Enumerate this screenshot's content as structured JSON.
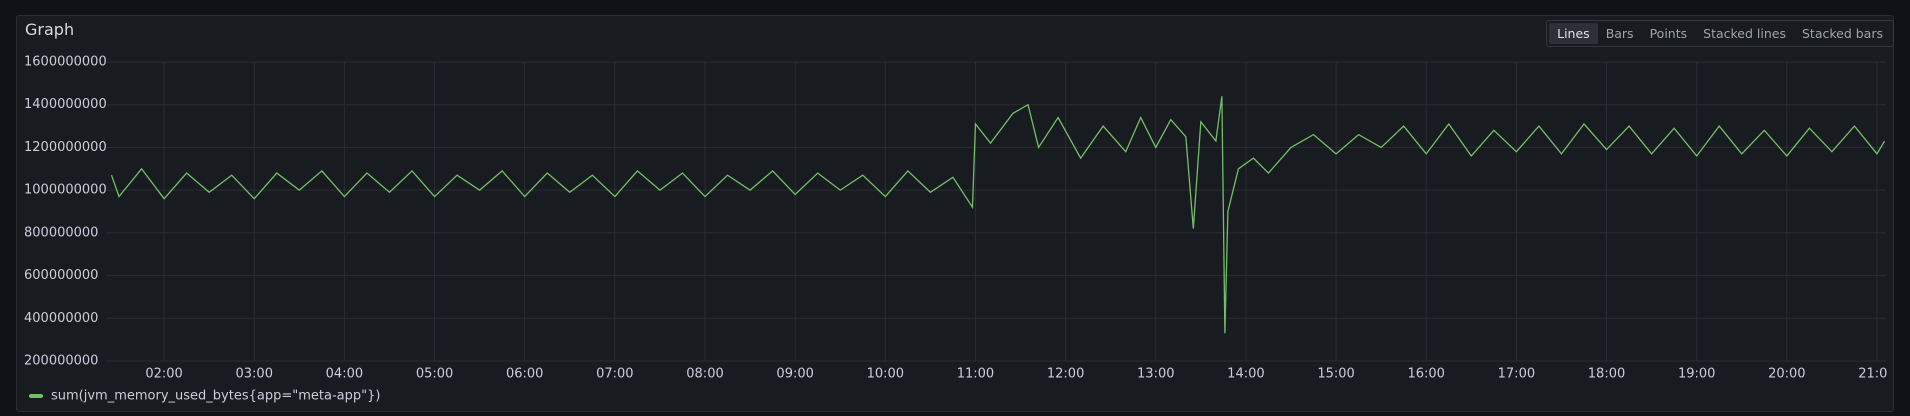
{
  "panel_title": "Graph",
  "display_modes": [
    "Lines",
    "Bars",
    "Points",
    "Stacked lines",
    "Stacked bars"
  ],
  "chart_data": {
    "type": "line",
    "x": [
      "01:25",
      "01:30",
      "01:45",
      "02:00",
      "02:15",
      "02:30",
      "02:45",
      "03:00",
      "03:15",
      "03:30",
      "03:45",
      "04:00",
      "04:15",
      "04:30",
      "04:45",
      "05:00",
      "05:15",
      "05:30",
      "05:45",
      "06:00",
      "06:15",
      "06:30",
      "06:45",
      "07:00",
      "07:15",
      "07:30",
      "07:45",
      "08:00",
      "08:15",
      "08:30",
      "08:45",
      "09:00",
      "09:15",
      "09:30",
      "09:45",
      "10:00",
      "10:15",
      "10:30",
      "10:45",
      "10:58",
      "11:00",
      "11:10",
      "11:25",
      "11:35",
      "11:42",
      "11:55",
      "12:10",
      "12:25",
      "12:40",
      "12:50",
      "13:00",
      "13:10",
      "13:20",
      "13:25",
      "13:30",
      "13:40",
      "13:44",
      "13:46",
      "13:48",
      "13:55",
      "14:05",
      "14:15",
      "14:30",
      "14:45",
      "15:00",
      "15:15",
      "15:30",
      "15:45",
      "16:00",
      "16:15",
      "16:30",
      "16:45",
      "17:00",
      "17:15",
      "17:30",
      "17:45",
      "18:00",
      "18:15",
      "18:30",
      "18:45",
      "19:00",
      "19:15",
      "19:30",
      "19:45",
      "20:00",
      "20:15",
      "20:30",
      "20:45",
      "21:00",
      "21:05"
    ],
    "series": [
      {
        "name": "sum(jvm_memory_used_bytes{app=\"meta-app\"})",
        "color": "#73bf69",
        "values": [
          1070000000,
          970000000,
          1100000000,
          960000000,
          1080000000,
          990000000,
          1070000000,
          960000000,
          1080000000,
          1000000000,
          1090000000,
          970000000,
          1080000000,
          990000000,
          1090000000,
          970000000,
          1070000000,
          1000000000,
          1090000000,
          970000000,
          1080000000,
          990000000,
          1070000000,
          970000000,
          1090000000,
          1000000000,
          1080000000,
          970000000,
          1070000000,
          1000000000,
          1090000000,
          980000000,
          1080000000,
          1000000000,
          1070000000,
          970000000,
          1090000000,
          990000000,
          1060000000,
          920000000,
          1310000000,
          1220000000,
          1360000000,
          1400000000,
          1200000000,
          1340000000,
          1150000000,
          1300000000,
          1180000000,
          1340000000,
          1200000000,
          1330000000,
          1250000000,
          820000000,
          1320000000,
          1230000000,
          1440000000,
          330000000,
          900000000,
          1100000000,
          1150000000,
          1080000000,
          1200000000,
          1260000000,
          1170000000,
          1260000000,
          1200000000,
          1300000000,
          1170000000,
          1310000000,
          1160000000,
          1280000000,
          1180000000,
          1300000000,
          1170000000,
          1310000000,
          1190000000,
          1300000000,
          1170000000,
          1290000000,
          1160000000,
          1300000000,
          1170000000,
          1280000000,
          1160000000,
          1290000000,
          1180000000,
          1300000000,
          1170000000,
          1230000000
        ]
      }
    ],
    "xlim": [
      "01:22",
      "21:06"
    ],
    "xticks": [
      "02:00",
      "03:00",
      "04:00",
      "05:00",
      "06:00",
      "07:00",
      "08:00",
      "09:00",
      "10:00",
      "11:00",
      "12:00",
      "13:00",
      "14:00",
      "15:00",
      "16:00",
      "17:00",
      "18:00",
      "19:00",
      "20:00",
      "21:00"
    ],
    "ylim": [
      200000000,
      1600000000
    ],
    "yticks": [
      200000000,
      400000000,
      600000000,
      800000000,
      1000000000,
      1200000000,
      1400000000,
      1600000000
    ],
    "grid": true
  }
}
